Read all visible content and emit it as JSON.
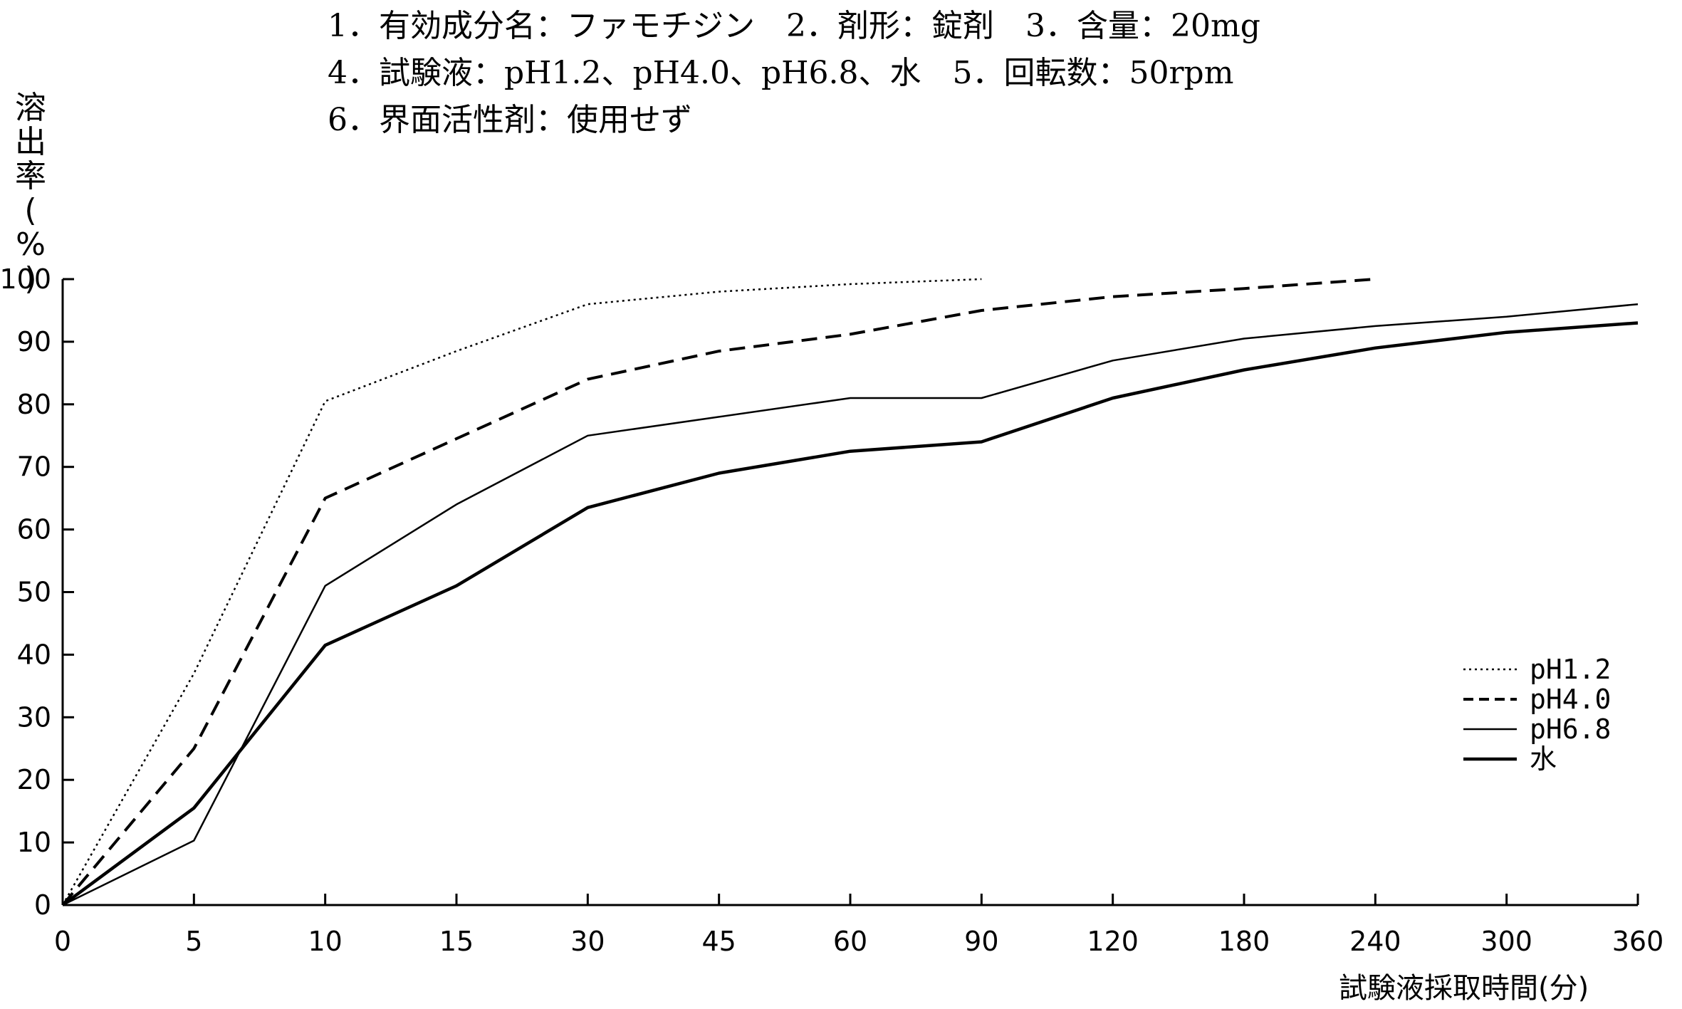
{
  "header": {
    "line1": "1．有効成分名：ファモチジン　2．剤形：錠剤　3．含量：20mg",
    "line2": "4．試験液：pH1.2、pH4.0、pH6.8、水　5．回転数：50rpm",
    "line3": "6．界面活性剤：使用せず"
  },
  "chart_data": {
    "type": "line",
    "ylabel": "溶出率(%)",
    "xlabel": "試験液採取時間(分)",
    "categories": [
      "0",
      "5",
      "10",
      "15",
      "30",
      "45",
      "60",
      "90",
      "120",
      "180",
      "240",
      "300",
      "360"
    ],
    "ylim": [
      0,
      100
    ],
    "yticks": [
      "0",
      "10",
      "20",
      "30",
      "40",
      "50",
      "60",
      "70",
      "80",
      "90",
      "100"
    ],
    "legend_position": "bottom-right",
    "series": [
      {
        "name": "pH1.2",
        "style": "dotted",
        "values": [
          0,
          37,
          80.5,
          88.5,
          96,
          98,
          99.2,
          100,
          null,
          null,
          null,
          null,
          null
        ]
      },
      {
        "name": "pH4.0",
        "style": "dashed",
        "values": [
          0,
          25,
          65,
          74.5,
          84,
          88.5,
          91.2,
          95,
          97.2,
          98.5,
          100,
          null,
          null
        ]
      },
      {
        "name": "pH6.8",
        "style": "thin",
        "values": [
          0,
          10.3,
          51,
          64,
          75,
          78,
          81,
          81,
          87,
          90.5,
          92.5,
          94,
          96
        ]
      },
      {
        "name": "水",
        "style": "thick",
        "values": [
          0,
          15.5,
          41.5,
          51,
          63.5,
          69,
          72.5,
          74,
          81,
          85.5,
          89,
          91.5,
          93
        ]
      }
    ]
  }
}
